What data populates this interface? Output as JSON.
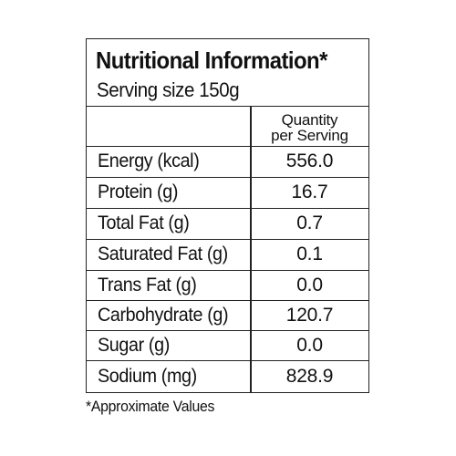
{
  "panel": {
    "title": "Nutritional Information*",
    "serving_size": "Serving size 150g",
    "column_header_line1": "Quantity",
    "column_header_line2": "per Serving"
  },
  "rows": [
    {
      "nutrient": "Energy (kcal)",
      "value": "556.0"
    },
    {
      "nutrient": "Protein (g)",
      "value": "16.7"
    },
    {
      "nutrient": "Total Fat (g)",
      "value": "0.7"
    },
    {
      "nutrient": "Saturated Fat (g)",
      "value": "0.1"
    },
    {
      "nutrient": "Trans Fat (g)",
      "value": "0.0"
    },
    {
      "nutrient": "Carbohydrate (g)",
      "value": "120.7"
    },
    {
      "nutrient": "Sugar (g)",
      "value": "0.0"
    },
    {
      "nutrient": "Sodium (mg)",
      "value": "828.9"
    }
  ],
  "footnote": "*Approximate Values"
}
